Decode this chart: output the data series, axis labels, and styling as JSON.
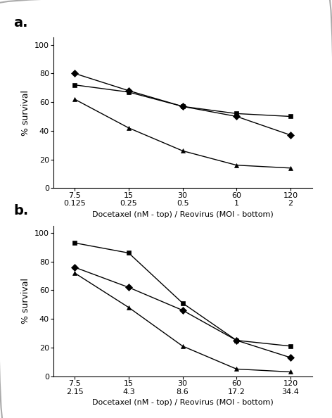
{
  "panel_a": {
    "label": "a.",
    "x_positions": [
      1,
      2,
      3,
      4,
      5
    ],
    "x_tick_labels_top": [
      "7.5",
      "15",
      "30",
      "60",
      "120"
    ],
    "x_tick_labels_bottom": [
      "0.125",
      "0.25",
      "0.5",
      "1",
      "2"
    ],
    "diamonds": [
      80,
      68,
      57,
      50,
      37
    ],
    "squares": [
      72,
      67,
      57,
      52,
      50
    ],
    "triangles": [
      62,
      42,
      26,
      16,
      14
    ],
    "ylabel": "% survival",
    "xlabel": "Docetaxel (nM - top) / Reovirus (MOI - bottom)",
    "ylim": [
      0,
      105
    ],
    "yticks": [
      0,
      20,
      40,
      60,
      80,
      100
    ]
  },
  "panel_b": {
    "label": "b.",
    "x_positions": [
      1,
      2,
      3,
      4,
      5
    ],
    "x_tick_labels_top": [
      "7.5",
      "15",
      "30",
      "60",
      "120"
    ],
    "x_tick_labels_bottom": [
      "2.15",
      "4.3",
      "8.6",
      "17.2",
      "34.4"
    ],
    "diamonds": [
      76,
      62,
      46,
      25,
      13
    ],
    "squares": [
      93,
      86,
      51,
      25,
      21
    ],
    "triangles": [
      72,
      48,
      21,
      5,
      3
    ],
    "ylabel": "% survival",
    "xlabel": "Docetaxel (nM - top) / Reovirus (MOI - bottom)",
    "ylim": [
      0,
      105
    ],
    "yticks": [
      0,
      20,
      40,
      60,
      80,
      100
    ]
  },
  "line_color": "#000000",
  "marker_size": 5,
  "line_width": 1.0,
  "bg_color": "#ffffff",
  "label_fontsize": 14,
  "tick_fontsize": 8,
  "ylabel_fontsize": 9,
  "xlabel_fontsize": 8
}
